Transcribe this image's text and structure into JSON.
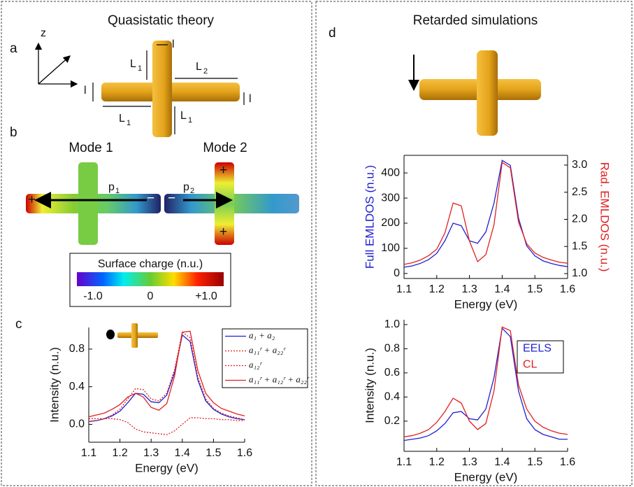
{
  "figure": {
    "title_left": "Quasistatic theory",
    "title_right": "Retarded simulations",
    "panels": [
      "a",
      "b",
      "c",
      "d"
    ],
    "dims": {
      "z": "z",
      "l_top": "l",
      "L1_top": "L",
      "L1_top_sub": "1",
      "L2": "L",
      "L2_sub": "2",
      "l_left": "l",
      "l_right": "l",
      "L1_bottom": "L",
      "L1_bottom_sub": "1",
      "L1_right": "L",
      "L1_right_sub": "1"
    },
    "modes": {
      "mode1": "Mode 1",
      "mode2": "Mode 2",
      "p1": "p",
      "p1_sub": "1",
      "p2": "p",
      "p2_sub": "2",
      "plus": "+",
      "minus": "−"
    },
    "colorbar": {
      "title": "Surface charge (n.u.)",
      "ticks": [
        "-1.0",
        "0",
        "+1.0"
      ]
    }
  },
  "chart_data": [
    {
      "type": "line",
      "x_label": "Energy (eV)",
      "y_label": "Intensity (n.u.)",
      "x": [
        1.1,
        1.125,
        1.15,
        1.175,
        1.2,
        1.225,
        1.25,
        1.275,
        1.3,
        1.325,
        1.35,
        1.375,
        1.4,
        1.425,
        1.45,
        1.475,
        1.5,
        1.525,
        1.55,
        1.575,
        1.6
      ],
      "xlim": [
        1.1,
        1.6
      ],
      "xticks": [
        1.1,
        1.2,
        1.3,
        1.4,
        1.5,
        1.6
      ],
      "ylim": [
        -0.19,
        1.03
      ],
      "yticks": [
        {
          "value": 0,
          "label": "0.0"
        },
        0.4,
        0.8
      ],
      "legend": "upper right",
      "series": [
        {
          "name": "a₁ + a₂",
          "color": "#1f1fd0",
          "line_style": "solid",
          "values": [
            0.03,
            0.04,
            0.06,
            0.09,
            0.14,
            0.23,
            0.33,
            0.32,
            0.24,
            0.23,
            0.31,
            0.55,
            0.95,
            0.88,
            0.47,
            0.25,
            0.16,
            0.11,
            0.08,
            0.06,
            0.05
          ]
        },
        {
          "name": "a₁₁ʳ + a₂₂ʳ",
          "color": "#e02020",
          "line_style": "dotted",
          "values": [
            0.03,
            0.04,
            0.06,
            0.1,
            0.16,
            0.27,
            0.38,
            0.37,
            0.27,
            0.25,
            0.33,
            0.58,
            0.98,
            0.92,
            0.5,
            0.27,
            0.17,
            0.12,
            0.09,
            0.07,
            0.05
          ]
        },
        {
          "name": "a₁₂ʳ",
          "color": "#e02020",
          "line_style": "dotted",
          "values": [
            0.06,
            0.06,
            0.06,
            0.06,
            0.05,
            0.02,
            -0.05,
            -0.08,
            -0.09,
            -0.1,
            -0.11,
            -0.07,
            0.0,
            0.07,
            0.07,
            0.06,
            0.06,
            0.05,
            0.05,
            0.04,
            0.04
          ]
        },
        {
          "name": "a₁₁ʳ + a₁₂ʳ + a₂₂ʳ",
          "color": "#e02020",
          "line_style": "solid",
          "values": [
            0.08,
            0.1,
            0.12,
            0.16,
            0.21,
            0.29,
            0.33,
            0.29,
            0.18,
            0.15,
            0.22,
            0.51,
            0.98,
            0.99,
            0.57,
            0.33,
            0.23,
            0.17,
            0.14,
            0.11,
            0.09
          ]
        }
      ]
    },
    {
      "type": "line",
      "x_label": "Energy (eV)",
      "y_label": "Full EMLDOS (n.u.)",
      "y2_label": "Rad. EMLDOS (n.u.)",
      "x": [
        1.1,
        1.125,
        1.15,
        1.175,
        1.2,
        1.225,
        1.25,
        1.275,
        1.3,
        1.325,
        1.35,
        1.375,
        1.4,
        1.425,
        1.45,
        1.475,
        1.5,
        1.525,
        1.55,
        1.575,
        1.6
      ],
      "xlim": [
        1.1,
        1.6
      ],
      "xticks": [
        1.1,
        1.2,
        1.3,
        1.4,
        1.5,
        1.6
      ],
      "ylim": [
        -20,
        470
      ],
      "yticks": [
        0,
        100,
        200,
        300,
        400
      ],
      "y2lim": [
        0.91,
        3.18
      ],
      "y2ticks": [
        {
          "value": 1,
          "label": "1.0"
        },
        1.5,
        {
          "value": 2,
          "label": "2.0"
        },
        2.5,
        {
          "value": 3,
          "label": "3.0"
        }
      ],
      "series": [
        {
          "color": "#1f1fd0",
          "line_style": "solid",
          "values": [
            25,
            30,
            40,
            55,
            80,
            130,
            200,
            190,
            130,
            120,
            165,
            280,
            450,
            430,
            220,
            110,
            70,
            50,
            40,
            32,
            27
          ]
        },
        {
          "color": "#e02020",
          "line_style": "solid",
          "axis": "y2",
          "values": [
            1.17,
            1.2,
            1.25,
            1.33,
            1.45,
            1.75,
            2.3,
            2.25,
            1.6,
            1.22,
            1.35,
            1.9,
            3.05,
            2.95,
            1.95,
            1.55,
            1.38,
            1.3,
            1.25,
            1.21,
            1.19
          ]
        }
      ]
    },
    {
      "type": "line",
      "x_label": "Energy (eV)",
      "y_label": "Intensity (n.u.)",
      "x": [
        1.1,
        1.125,
        1.15,
        1.175,
        1.2,
        1.225,
        1.25,
        1.275,
        1.3,
        1.325,
        1.35,
        1.375,
        1.4,
        1.425,
        1.45,
        1.475,
        1.5,
        1.525,
        1.55,
        1.575,
        1.6
      ],
      "xlim": [
        1.1,
        1.6
      ],
      "xticks": [
        1.1,
        1.2,
        1.3,
        1.4,
        1.5,
        1.6
      ],
      "ylim": [
        -0.05,
        1.04
      ],
      "yticks": [
        0.2,
        0.4,
        0.6,
        0.8,
        {
          "value": 1,
          "label": "1.0"
        }
      ],
      "legend": "upper right",
      "series": [
        {
          "name": "EELS",
          "color": "#1f1fd0",
          "line_style": "solid",
          "values": [
            0.04,
            0.05,
            0.06,
            0.08,
            0.12,
            0.18,
            0.27,
            0.28,
            0.22,
            0.21,
            0.3,
            0.56,
            0.97,
            0.9,
            0.45,
            0.22,
            0.13,
            0.09,
            0.07,
            0.05,
            0.05
          ]
        },
        {
          "name": "CL",
          "color": "#e02020",
          "line_style": "solid",
          "values": [
            0.07,
            0.08,
            0.1,
            0.13,
            0.19,
            0.28,
            0.39,
            0.35,
            0.2,
            0.13,
            0.18,
            0.45,
            0.98,
            0.95,
            0.5,
            0.3,
            0.2,
            0.15,
            0.12,
            0.1,
            0.09
          ]
        }
      ]
    }
  ]
}
